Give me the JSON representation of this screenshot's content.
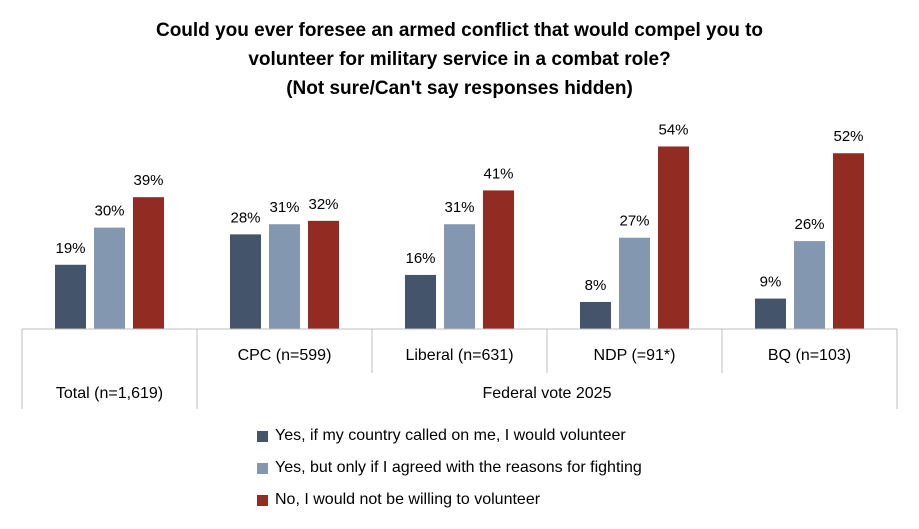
{
  "title_lines": [
    "Could you ever foresee an armed conflict that would compel you to",
    "volunteer for military service in a combat role?",
    "(Not sure/Can't say responses hidden)"
  ],
  "chart_data": {
    "type": "bar",
    "categories": [
      "Total (n=1,619)",
      "CPC (n=599)",
      "Liberal (n=631)",
      "NDP (=91*)",
      "BQ (n=103)"
    ],
    "group_label": "Federal vote 2025",
    "series": [
      {
        "name": "Yes, if my country called on me, I would volunteer",
        "color": "#44546a",
        "values": [
          19,
          28,
          16,
          8,
          9
        ]
      },
      {
        "name": "Yes, but only if I agreed with the reasons for fighting",
        "color": "#8497b0",
        "values": [
          30,
          31,
          31,
          27,
          26
        ]
      },
      {
        "name": "No, I would not be willing to volunteer",
        "color": "#922b21",
        "values": [
          39,
          32,
          41,
          54,
          52
        ]
      }
    ],
    "value_suffix": "%",
    "legend_position": "bottom",
    "grid": false
  }
}
